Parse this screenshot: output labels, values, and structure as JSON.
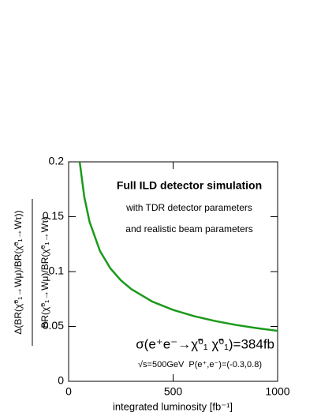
{
  "chart_data": {
    "type": "line",
    "xlabel": "integrated luminosity [fb⁻¹]",
    "ylabel_numerator": "Δ(BR(χ̃⁰₁→Wμ)/BR(χ̃⁰₁→Wτ))",
    "ylabel_denominator": "BR(χ̃⁰₁→Wμ)/BR(χ̃⁰₁→Wτ)",
    "annotations": [
      "Full ILD detector simulation",
      "with TDR detector parameters",
      "and realistic beam parameters",
      "σ(e⁺e⁻→χ̃⁰₁ χ̃⁰₁)=384fb",
      "√s=500GeV",
      "P(e⁺,e⁻)=(-0.3,0.8)"
    ],
    "x": [
      53,
      75,
      100,
      150,
      200,
      250,
      300,
      400,
      500,
      600,
      700,
      800,
      900,
      1000
    ],
    "series": [
      {
        "color": "#1a9a1a",
        "values": [
          0.2,
          0.168,
          0.1455,
          0.1188,
          0.1029,
          0.092,
          0.084,
          0.0727,
          0.0651,
          0.0594,
          0.055,
          0.0514,
          0.0485,
          0.046
        ]
      }
    ],
    "xlim": [
      0,
      1000
    ],
    "xticks": [
      0,
      500,
      1000
    ],
    "ylim": [
      0,
      0.2
    ],
    "yticks": [
      0,
      0.05,
      0.1,
      0.15,
      0.2
    ]
  }
}
